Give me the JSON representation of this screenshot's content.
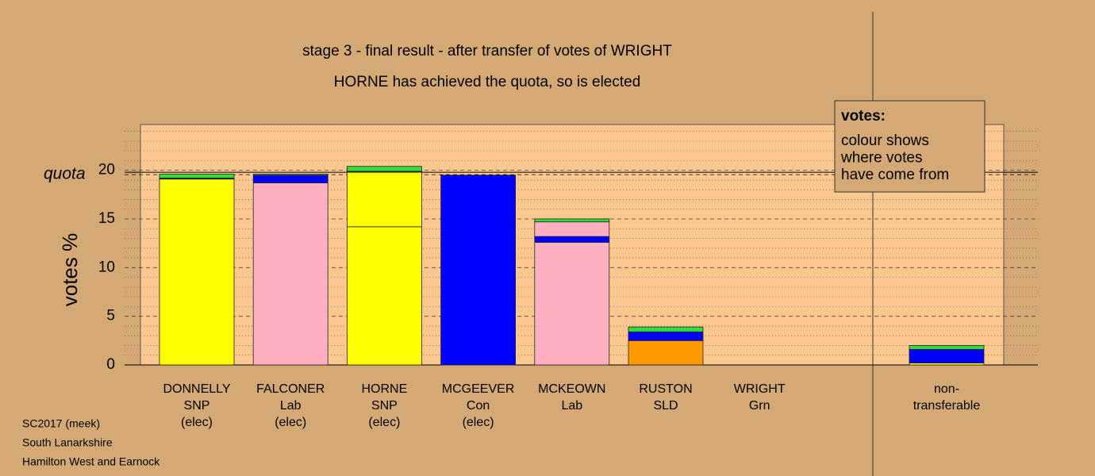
{
  "chart_data": {
    "type": "stacked_bar",
    "title": "stage 3 - final result - after transfer of votes of WRIGHT",
    "subtitle": "HORNE has achieved the quota, so is elected",
    "ylabel": "votes %",
    "categories": [
      [
        "DONNELLY",
        "SNP",
        "(elec)"
      ],
      [
        "FALCONER",
        "Lab",
        "(elec)"
      ],
      [
        "HORNE",
        "SNP",
        "(elec)"
      ],
      [
        "MCGEEVER",
        "Con",
        "(elec)"
      ],
      [
        "MCKEOWN",
        "Lab"
      ],
      [
        "RUSTON",
        "SLD"
      ],
      [
        "WRIGHT",
        "Grn"
      ],
      [
        "non-",
        "transferable"
      ]
    ],
    "series": [
      {
        "color": "#ffff00",
        "values": [
          19.1,
          0,
          14.2,
          0,
          0,
          0,
          0,
          0.2
        ]
      },
      {
        "color": "#ffb0c0",
        "values": [
          0,
          18.7,
          0,
          0,
          12.6,
          0,
          0,
          0
        ]
      },
      {
        "color": "#0000ff",
        "values": [
          0,
          0,
          0,
          19.5,
          0,
          0,
          0,
          0
        ]
      },
      {
        "color": "#ff9900",
        "values": [
          0,
          0,
          0,
          0,
          0,
          2.5,
          0,
          0
        ]
      },
      {
        "color": "#ffff00",
        "values": [
          0,
          0,
          5.6,
          0,
          0,
          0,
          0,
          0
        ]
      },
      {
        "color": "#0000ff",
        "values": [
          0.1,
          0.8,
          0.1,
          0,
          0.6,
          0.9,
          0,
          1.4
        ]
      },
      {
        "color": "#ffb0c0",
        "values": [
          0,
          0,
          0,
          0,
          1.5,
          0,
          0,
          0
        ]
      },
      {
        "color": "#33dd33",
        "values": [
          0.4,
          0.1,
          0.5,
          0,
          0.3,
          0.5,
          0,
          0.4
        ]
      }
    ],
    "ylim": [
      0,
      24.7
    ],
    "yticks": [
      0,
      5,
      10,
      15,
      20
    ],
    "minor_yticks": [
      1,
      2,
      3,
      4,
      6,
      7,
      8,
      9,
      11,
      12,
      13,
      14,
      16,
      17,
      18,
      19,
      21,
      22,
      23,
      24
    ],
    "quota": {
      "label": "quota",
      "value": 19.8
    },
    "legend": {
      "title": "votes:",
      "lines": [
        "colour shows",
        "where votes",
        "have come from"
      ]
    },
    "footer": [
      "SC2017 (meek)",
      "South Lanarkshire",
      "Hamilton West and Earnock"
    ]
  }
}
